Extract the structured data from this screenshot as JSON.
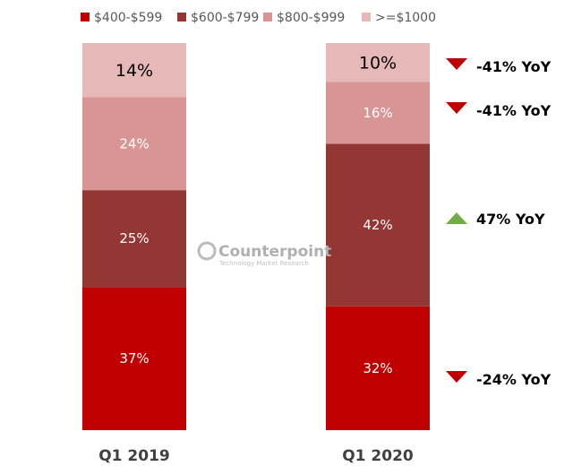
{
  "chart_data": {
    "type": "bar",
    "stacked": true,
    "title": "",
    "xlabel": "",
    "ylabel": "",
    "ylim": [
      0,
      100
    ],
    "categories": [
      "Q1 2019",
      "Q1 2020"
    ],
    "series": [
      {
        "name": "$400-$599",
        "values": [
          37,
          32
        ],
        "color": "#c00000",
        "label_color": "#ffffff"
      },
      {
        "name": "$600-$799",
        "values": [
          25,
          42
        ],
        "color": "#943634",
        "label_color": "#ffffff"
      },
      {
        "name": "$800-$999",
        "values": [
          24,
          16
        ],
        "color": "#d99594",
        "label_color": "#ffffff"
      },
      {
        "name": ">=$1000",
        "values": [
          14,
          10
        ],
        "color": "#e6b9b8",
        "label_color": "#000000"
      }
    ],
    "legend_position": "top",
    "annotations": [
      {
        "series": ">=$1000",
        "text": "-41% YoY",
        "direction": "down",
        "color": "#c00000"
      },
      {
        "series": "$800-$999",
        "text": "-41% YoY",
        "direction": "down",
        "color": "#c00000"
      },
      {
        "series": "$600-$799",
        "text": "47% YoY",
        "direction": "up",
        "color": "#70ad47"
      },
      {
        "series": "$400-$599",
        "text": "-24% YoY",
        "direction": "down",
        "color": "#c00000"
      }
    ],
    "watermark": {
      "name": "Counterpoint",
      "tagline": "Technology Market Research"
    }
  }
}
